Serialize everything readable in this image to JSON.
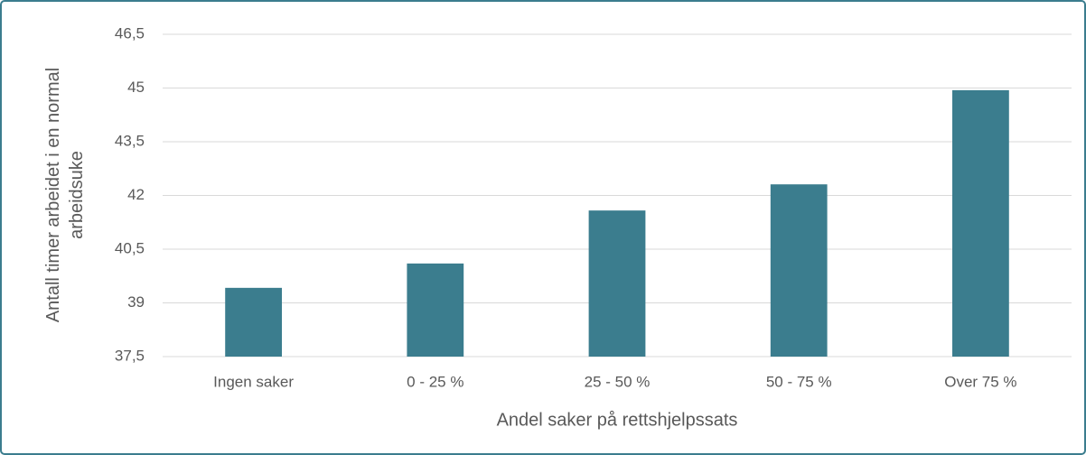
{
  "chart_data": {
    "type": "bar",
    "x_label": "Andel saker på rettshjelpssats",
    "y_label": "Antall timer arbeidet i en normal arbeidsuke",
    "categories": [
      "Ingen saker",
      "0 - 25 %",
      "25 - 50 %",
      "50 - 75 %",
      "Over 75 %"
    ],
    "values": [
      39.42,
      40.1,
      41.58,
      42.31,
      44.94
    ],
    "color": "#3b7d8e",
    "ylim": [
      37.5,
      46.5
    ],
    "yticks": [
      {
        "value": 37.5,
        "label": "37,5"
      },
      39,
      {
        "value": 40.5,
        "label": "40,5"
      },
      42,
      {
        "value": 43.5,
        "label": "43,5"
      },
      45,
      {
        "value": 46.5,
        "label": "46,5"
      }
    ],
    "grid": true
  }
}
